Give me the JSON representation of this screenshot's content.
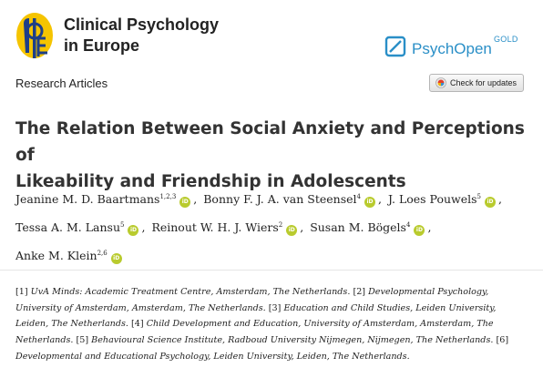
{
  "header": {
    "journal_line1": "Clinical Psychology",
    "journal_line2": "in Europe",
    "publisher_name": "PsychOpen",
    "publisher_tier": "GOLD",
    "colors": {
      "logo_yellow": "#f5c400",
      "logo_blue": "#1e3f88",
      "publisher_blue": "#2a8fc7",
      "orcid_green": "#b9cb2e"
    }
  },
  "section_label": "Research Articles",
  "updates_button": {
    "label": "Check for updates",
    "icon": "crossmark-icon"
  },
  "title_line1": "The Relation Between Social Anxiety and Perceptions of",
  "title_line2": "Likeability and Friendship in Adolescents",
  "authors": [
    {
      "name": "Jeanine M. D. Baartmans",
      "sup": "1,2,3"
    },
    {
      "name": "Bonny F. J. A. van Steensel",
      "sup": "4"
    },
    {
      "name": "J. Loes Pouwels",
      "sup": "5"
    },
    {
      "name": "Tessa A. M. Lansu",
      "sup": "5"
    },
    {
      "name": "Reinout W. H. J. Wiers",
      "sup": "2"
    },
    {
      "name": "Susan M. Bögels",
      "sup": "4"
    },
    {
      "name": "Anke M. Klein",
      "sup": "2,6"
    }
  ],
  "orcid_label": "iD",
  "separator": ",",
  "affiliations": [
    {
      "num": "[1]",
      "text": "UvA Minds: Academic Treatment Centre, Amsterdam, The Netherlands."
    },
    {
      "num": "[2]",
      "text": "Developmental Psychology, University of Amsterdam, Amsterdam, The Netherlands."
    },
    {
      "num": "[3]",
      "text": "Education and Child Studies, Leiden University, Leiden, The Netherlands."
    },
    {
      "num": "[4]",
      "text": "Child Development and Education, University of Amsterdam, Amsterdam, The Netherlands."
    },
    {
      "num": "[5]",
      "text": "Behavioural Science Institute, Radboud University Nijmegen, Nijmegen, The Netherlands."
    },
    {
      "num": "[6]",
      "text": "Developmental and Educational Psychology, Leiden University, Leiden, The Netherlands."
    }
  ]
}
